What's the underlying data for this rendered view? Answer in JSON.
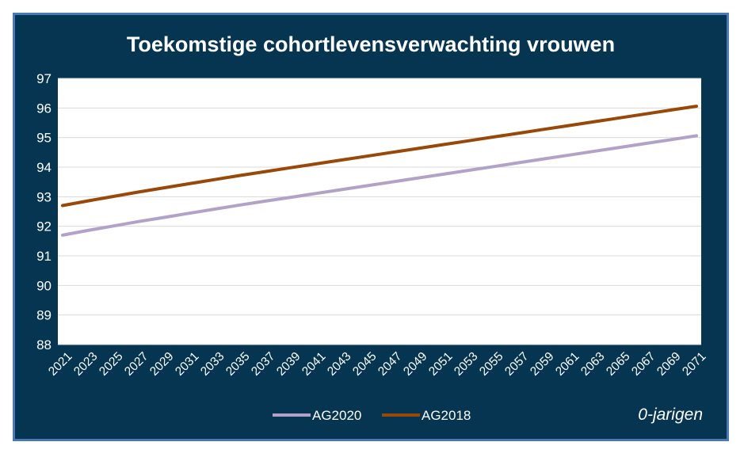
{
  "chart_data": {
    "type": "line",
    "title": "Toekomstige cohortlevensverwachting vrouwen",
    "xlabel": "",
    "ylabel": "",
    "x": [
      2021,
      2023,
      2025,
      2027,
      2029,
      2031,
      2033,
      2035,
      2037,
      2039,
      2041,
      2043,
      2045,
      2047,
      2049,
      2051,
      2053,
      2055,
      2057,
      2059,
      2061,
      2063,
      2065,
      2067,
      2069,
      2071
    ],
    "x_tick_labels": [
      "2021",
      "2023",
      "2025",
      "2027",
      "2029",
      "2031",
      "2033",
      "2035",
      "2037",
      "2039",
      "2041",
      "2043",
      "2045",
      "2047",
      "2049",
      "2051",
      "2053",
      "2055",
      "2057",
      "2059",
      "2061",
      "2063",
      "2065",
      "2067",
      "2069",
      "2071"
    ],
    "ylim": [
      88,
      97
    ],
    "y_ticks": [
      "88",
      "89",
      "90",
      "91",
      "92",
      "93",
      "94",
      "95",
      "96",
      "97"
    ],
    "grid": true,
    "legend_position": "bottom",
    "series": [
      {
        "name": "AG2020",
        "color": "#b3a2c7",
        "values": [
          91.7,
          91.86,
          92.01,
          92.16,
          92.3,
          92.44,
          92.58,
          92.72,
          92.85,
          92.98,
          93.11,
          93.24,
          93.37,
          93.5,
          93.63,
          93.76,
          93.89,
          94.02,
          94.15,
          94.28,
          94.41,
          94.54,
          94.67,
          94.8,
          94.93,
          95.06
        ]
      },
      {
        "name": "AG2018",
        "color": "#984807",
        "values": [
          92.7,
          92.86,
          93.01,
          93.16,
          93.3,
          93.44,
          93.58,
          93.72,
          93.85,
          93.98,
          94.11,
          94.24,
          94.37,
          94.5,
          94.63,
          94.76,
          94.89,
          95.02,
          95.15,
          95.28,
          95.41,
          95.54,
          95.67,
          95.8,
          95.93,
          96.06
        ]
      }
    ],
    "annotation": "0-jarigen"
  },
  "colors": {
    "frame_background": "#053550",
    "frame_border": "#4a78b8",
    "plot_background": "#ffffff",
    "gridline": "#d9d9d9",
    "text": "#ffffff"
  }
}
